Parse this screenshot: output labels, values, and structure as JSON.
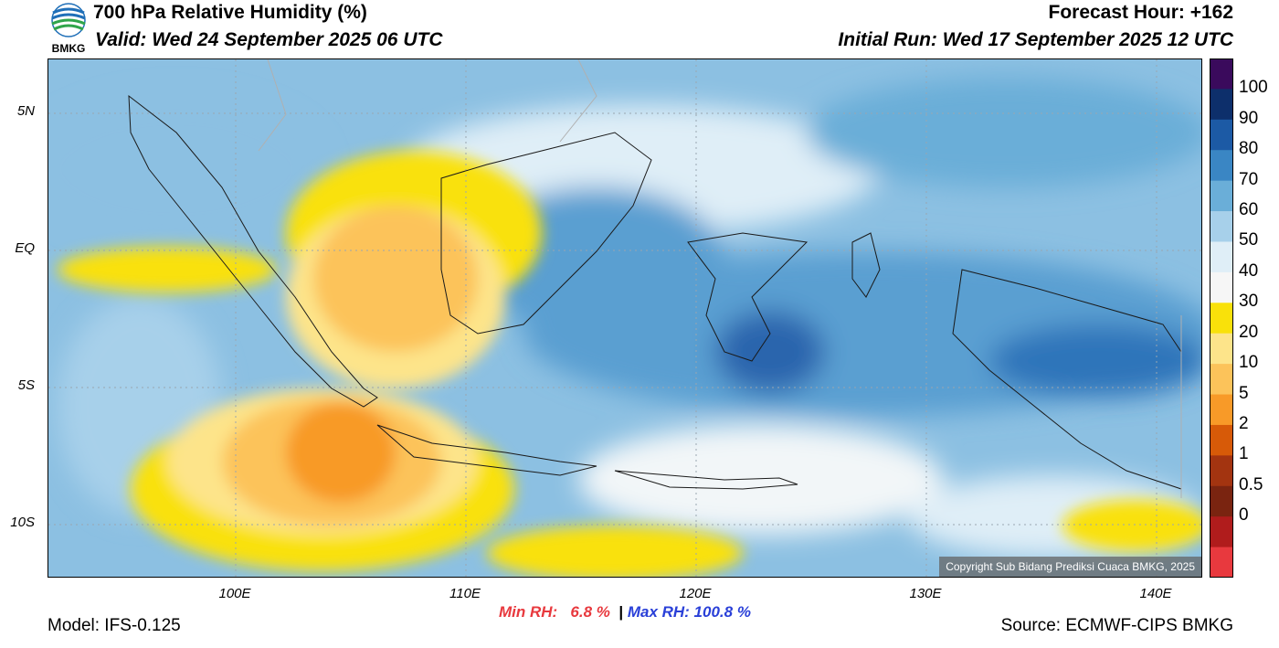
{
  "header": {
    "title": "700 hPa Relative Humidity (%)",
    "valid": "Valid: Wed 24 September 2025 06 UTC",
    "forecast_hour": "Forecast Hour: +162",
    "initial_run": "Initial Run: Wed 17 September 2025 12 UTC",
    "logo_text": "BMKG"
  },
  "map": {
    "lat_labels": [
      "5N",
      "EQ",
      "5S",
      "10S"
    ],
    "lon_labels": [
      "100E",
      "110E",
      "120E",
      "130E",
      "140E"
    ],
    "copyright": "Copyright Sub Bidang Prediksi Cuaca BMKG, 2025"
  },
  "colorbar": {
    "labels": [
      "100",
      "90",
      "80",
      "70",
      "60",
      "50",
      "40",
      "30",
      "20",
      "10",
      "5",
      "2",
      "1",
      "0.5",
      "0"
    ],
    "colors": [
      "#3a0a5c",
      "#0d2f6b",
      "#1c5aa5",
      "#3a86c4",
      "#6aaed8",
      "#a7d0ea",
      "#dfeef7",
      "#f6f6f6",
      "#f9e10a",
      "#fde48a",
      "#fcc35a",
      "#f89a28",
      "#d75a08",
      "#a33410",
      "#7a2410",
      "#b01c1c",
      "#e8393e"
    ]
  },
  "footer": {
    "min_rh_label": "Min RH:",
    "min_rh_value": "6.8 %",
    "separator": "|",
    "max_rh": "Max RH: 100.8 %",
    "model": "Model: IFS-0.125",
    "source": "Source: ECMWF-CIPS BMKG"
  }
}
